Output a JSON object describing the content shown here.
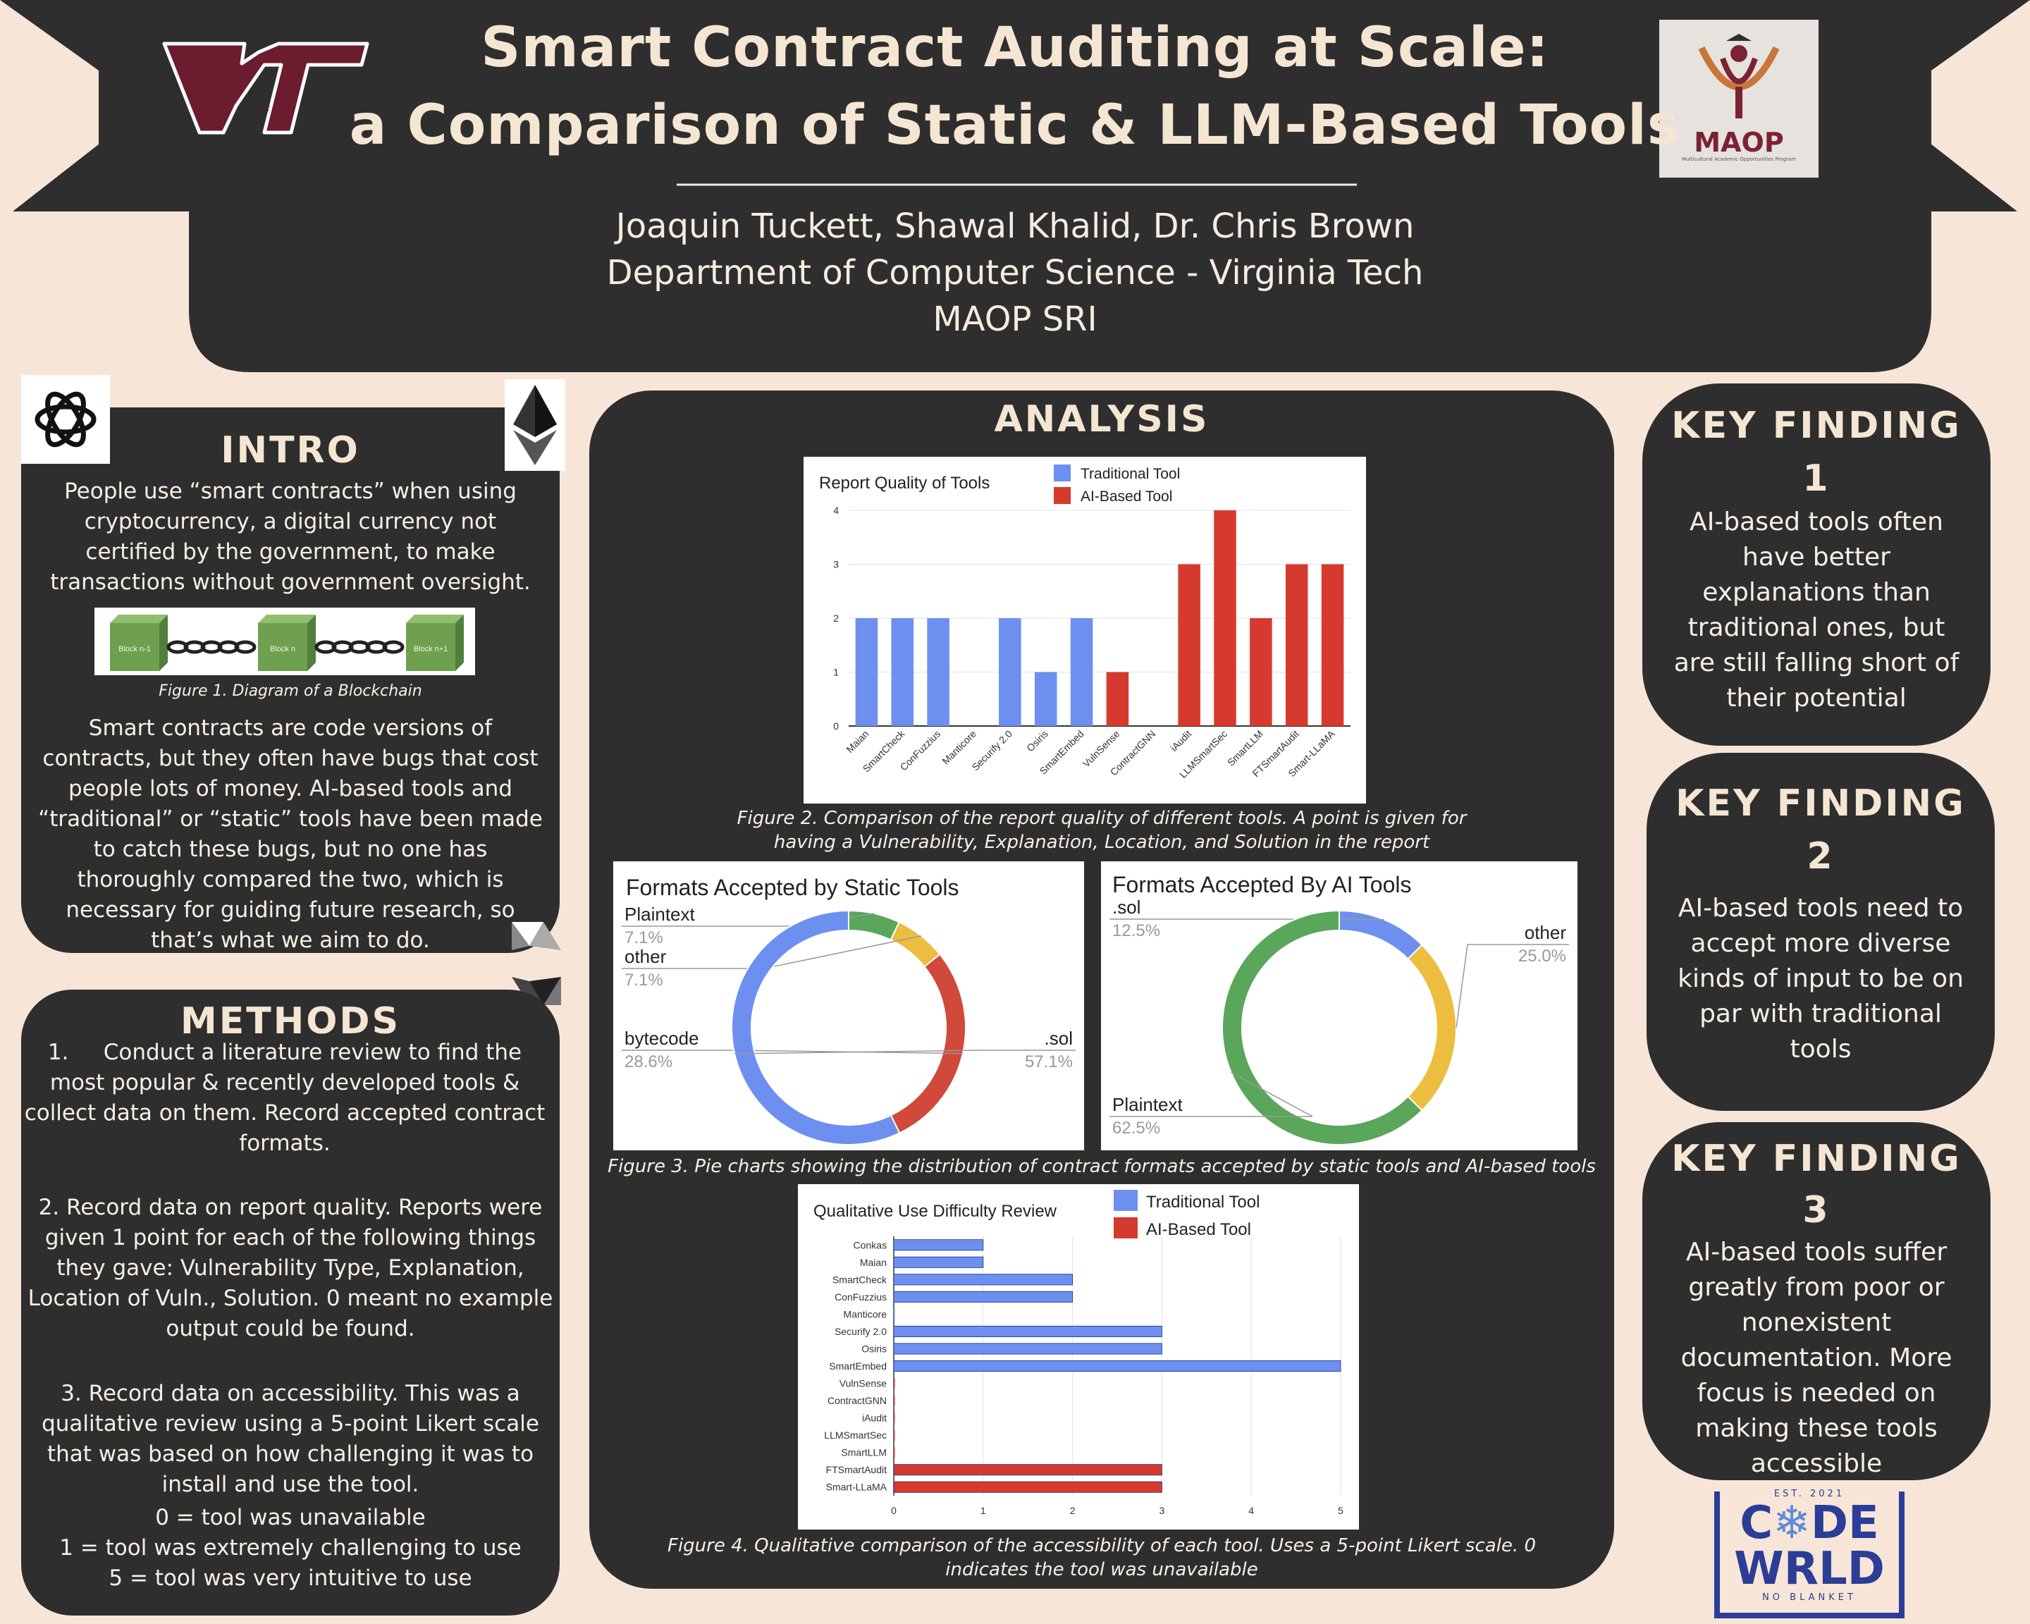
{
  "header": {
    "title_line1": "Smart Contract Auditing at Scale:",
    "title_line2": "a Comparison of Static & LLM-Based Tools",
    "authors": "Joaquin Tuckett, Shawal Khalid, Dr. Chris Brown",
    "department": "Department of Computer Science - Virginia Tech",
    "program": "MAOP SRI",
    "vt_logo_text": "VT",
    "maop_logo_text": "MAOP",
    "maop_logo_subtext": "Multicultural Academic Opportunities Program"
  },
  "intro": {
    "heading": "INTRO",
    "para1": "People use “smart contracts” when using cryptocurrency, a digital currency not certified by the government, to make transactions without government oversight.",
    "figure_caption": "Figure 1. Diagram of a Blockchain",
    "blocks": [
      "Block n-1",
      "Block n",
      "Block n+1"
    ],
    "para2": "Smart contracts are code versions of contracts, but they often have bugs that cost people lots of money. AI-based tools and “traditional” or “static” tools have been made to catch these bugs, but no one has thoroughly compared the two, which is necessary for guiding future research, so that’s what we aim to do."
  },
  "methods": {
    "heading": "METHODS",
    "step1": "1.     Conduct a literature review to find the most popular & recently developed tools & collect data on them. Record accepted contract formats.",
    "step2": "2. Record data on report quality. Reports were given 1 point for each of the following things they gave: Vulnerability Type, Explanation, Location of Vuln., Solution. 0 meant no example output could be found.",
    "step3": "3. Record data on accessibility. This was a qualitative review using a 5-point Likert scale that was based on how challenging it was to install and use the tool.",
    "scale0": "0 = tool was unavailable",
    "scale1": "1 = tool was extremely challenging to use",
    "scale5": "5 = tool was very intuitive to use"
  },
  "analysis": {
    "heading": "ANALYSIS",
    "fig2_caption_l1": "Figure 2. Comparison of the report quality of different tools. A point is given for",
    "fig2_caption_l2": "having a Vulnerability, Explanation, Location, and Solution in the report",
    "fig3_caption": "Figure 3. Pie charts showing the distribution of contract formats accepted by static tools and AI-based tools",
    "fig4_caption_l1": "Figure 4. Qualitative comparison of the accessibility of each tool. Uses a 5-point Likert scale. 0",
    "fig4_caption_l2": "indicates the tool was unavailable"
  },
  "findings": [
    {
      "heading_l1": "KEY FINDING",
      "heading_l2": "1",
      "text": "AI-based tools often have better explanations than traditional ones, but are still falling short of their potential"
    },
    {
      "heading_l1": "KEY FINDING",
      "heading_l2": "2",
      "text": "AI-based tools need to accept more diverse kinds of input to be on par with traditional tools"
    },
    {
      "heading_l1": "KEY FINDING",
      "heading_l2": "3",
      "text": "AI-based tools suffer greatly from poor or nonexistent documentation. More focus is needed on making these tools accessible"
    }
  ],
  "code_world_logo": {
    "top": "EST. 2021",
    "line1": "C",
    "line1b": "DE",
    "line2": "W",
    "line2b": "RLD",
    "bottom": "NO BLANKET"
  },
  "colors": {
    "traditional": "#6d8ff0",
    "ai": "#d63a2e",
    "green": "#5aa65a",
    "yellow": "#ecbd3f",
    "panel": "#2e2e2e",
    "background": "#f7e6d8"
  },
  "chart_data": [
    {
      "type": "bar",
      "title": "Report Quality of Tools",
      "legend": [
        "Traditional Tool",
        "AI-Based Tool"
      ],
      "categories": [
        "Maian",
        "SmartCheck",
        "ConFuzzius",
        "Manticore",
        "Securify 2.0",
        "Osiris",
        "SmartEmbed",
        "VulnSense",
        "ContractGNN",
        "iAudit",
        "LLMSmartSec",
        "SmartLLM",
        "FTSmartAudit",
        "Smart-LLaMA"
      ],
      "values": [
        2,
        2,
        2,
        0,
        2,
        1,
        2,
        1,
        0,
        3,
        4,
        2,
        3,
        3
      ],
      "groups": [
        "traditional",
        "traditional",
        "traditional",
        "traditional",
        "traditional",
        "traditional",
        "traditional",
        "ai",
        "ai",
        "ai",
        "ai",
        "ai",
        "ai",
        "ai"
      ],
      "yticks": [
        "0",
        "1",
        "2",
        "3",
        "4"
      ],
      "ylim": [
        0,
        4
      ]
    },
    {
      "type": "pie",
      "title": "Formats Accepted by Static Tools",
      "slices": [
        {
          "label": "Plaintext",
          "pct_label": "7.1%",
          "value": 7.1,
          "color": "#5aa65a"
        },
        {
          "label": "other",
          "pct_label": "7.1%",
          "value": 7.1,
          "color": "#ecbd3f"
        },
        {
          "label": "bytecode",
          "pct_label": "28.6%",
          "value": 28.6,
          "color": "#d0493a"
        },
        {
          "label": ".sol",
          "pct_label": "57.1%",
          "value": 57.1,
          "color": "#6d8ff0"
        }
      ]
    },
    {
      "type": "pie",
      "title": "Formats Accepted By AI Tools",
      "slices": [
        {
          "label": ".sol",
          "pct_label": "12.5%",
          "value": 12.5,
          "color": "#6d8ff0"
        },
        {
          "label": "other",
          "pct_label": "25.0%",
          "value": 25.0,
          "color": "#ecbd3f"
        },
        {
          "label": "Plaintext",
          "pct_label": "62.5%",
          "value": 62.5,
          "color": "#5aa65a"
        }
      ]
    },
    {
      "type": "bar",
      "orientation": "horizontal",
      "title": "Qualitative Use Difficulty Review",
      "legend": [
        "Traditional Tool",
        "AI-Based Tool"
      ],
      "categories": [
        "Conkas",
        "Maian",
        "SmartCheck",
        "ConFuzzius",
        "Manticore",
        "Securify 2.0",
        "Osiris",
        "SmartEmbed",
        "VulnSense",
        "ContractGNN",
        "iAudit",
        "LLMSmartSec",
        "SmartLLM",
        "FTSmartAudit",
        "Smart-LLaMA"
      ],
      "values": [
        1,
        1,
        2,
        2,
        0,
        3,
        3,
        5,
        0,
        0,
        0,
        0,
        0,
        3,
        3
      ],
      "groups": [
        "traditional",
        "traditional",
        "traditional",
        "traditional",
        "traditional",
        "traditional",
        "traditional",
        "traditional",
        "ai",
        "ai",
        "ai",
        "ai",
        "ai",
        "ai",
        "ai"
      ],
      "xticks": [
        "0",
        "1",
        "2",
        "3",
        "4",
        "5"
      ],
      "xlim": [
        0,
        5
      ]
    }
  ]
}
